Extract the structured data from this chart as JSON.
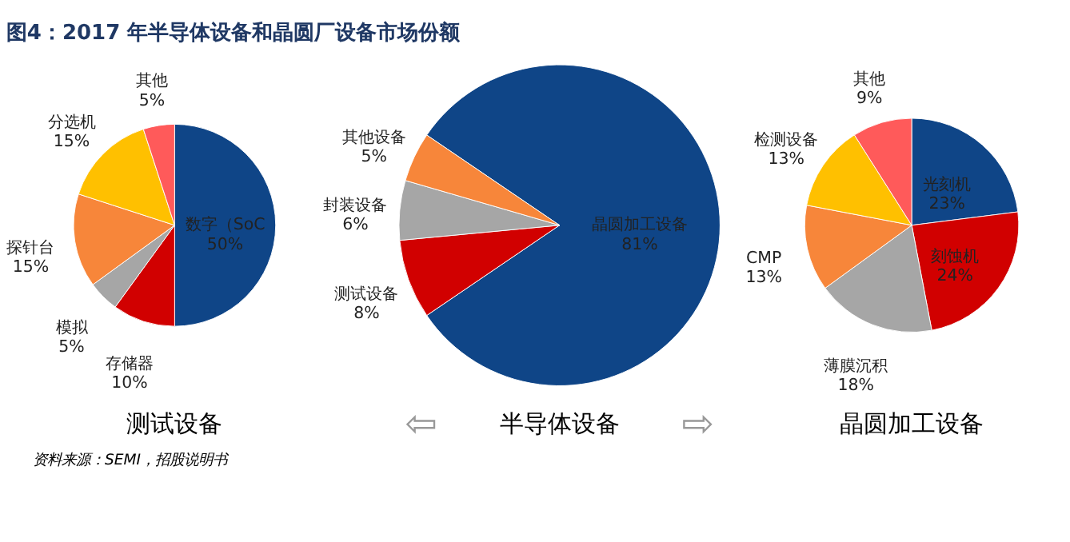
{
  "chart_data": [
    {
      "type": "pie",
      "title": "图4：2017 年半导体设备和晶圆厂设备市场份额",
      "categories": [
        "数字（SoC",
        "存储器",
        "模拟",
        "探针台",
        "分选机",
        "其他"
      ],
      "values": [
        50,
        10,
        5,
        15,
        15,
        5
      ],
      "colors": [
        "#0f4587",
        "#d10000",
        "#a6a6a6",
        "#f7863a",
        "#ffc000",
        "#ff5a5a"
      ],
      "value_labels": [
        "50%",
        "10%",
        "5%",
        "15%",
        "15%",
        "5%"
      ],
      "annotations": [
        "测试设备",
        "资料来源：SEMI，招股说明书"
      ]
    },
    {
      "type": "pie",
      "categories": [
        "晶圆加工设备",
        "测试设备",
        "封装设备",
        "其他设备"
      ],
      "values": [
        81,
        8,
        6,
        5
      ],
      "colors": [
        "#0f4587",
        "#d10000",
        "#a6a6a6",
        "#f7863a"
      ],
      "value_labels": [
        "81%",
        "8%",
        "6%",
        "5%"
      ],
      "annotations": [
        "⇦",
        "半导体设备",
        "⇨"
      ]
    },
    {
      "type": "pie",
      "categories": [
        "光刻机",
        "刻蚀机",
        "薄膜沉积",
        "CMP",
        "检测设备",
        "其他"
      ],
      "values": [
        23,
        24,
        18,
        13,
        13,
        9
      ],
      "colors": [
        "#0f4587",
        "#d10000",
        "#a6a6a6",
        "#f7863a",
        "#ffc000",
        "#ff5a5a"
      ],
      "value_labels": [
        "23%",
        "24%",
        "18%",
        "13%",
        "13%",
        "9%"
      ],
      "annotations": [
        "晶圆加工设备"
      ]
    }
  ]
}
